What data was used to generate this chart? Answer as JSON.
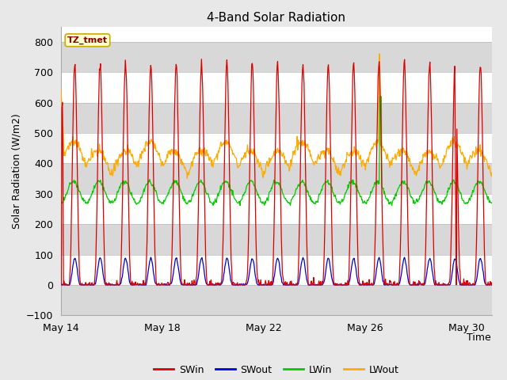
{
  "title": "4-Band Solar Radiation",
  "xlabel": "Time",
  "ylabel": "Solar Radiation (W/m2)",
  "ylim": [
    -100,
    850
  ],
  "yticks": [
    -100,
    0,
    100,
    200,
    300,
    400,
    500,
    600,
    700,
    800
  ],
  "colors": {
    "SWin": "#dd0000",
    "SWout": "#0000dd",
    "LWin": "#00cc00",
    "LWout": "#ffaa00"
  },
  "legend_label": "TZ_tmet",
  "background_color": "#e8e8e8",
  "plot_bg_color": "#ffffff",
  "band_color": "#d8d8d8",
  "xtick_labels": [
    "May 14",
    "May 18",
    "May 22",
    "May 26",
    "May 30"
  ],
  "xtick_positions": [
    0,
    4,
    8,
    12,
    16
  ],
  "n_days": 17,
  "pts_per_day": 48
}
